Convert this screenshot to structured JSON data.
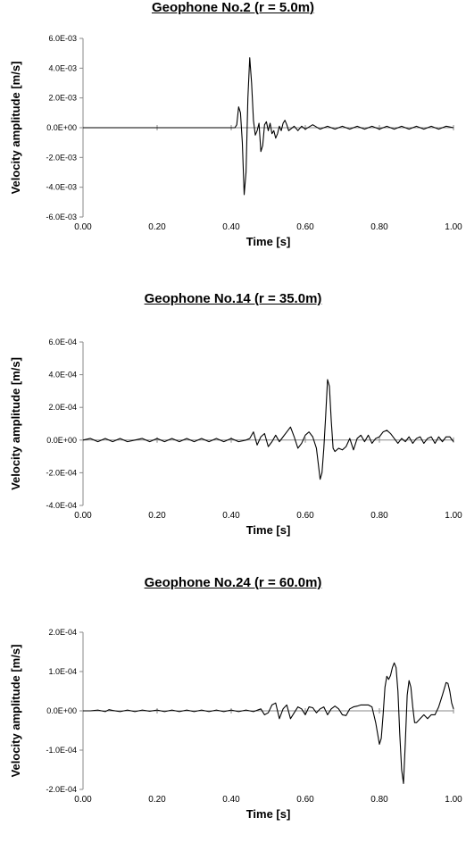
{
  "chart_data": [
    {
      "type": "line",
      "title": "Geophone No.2 (r = 5.0m)",
      "xlabel": "Time [s]",
      "ylabel": "Velocity amplitude [m/s]",
      "xlim": [
        0,
        1
      ],
      "ylim": [
        -0.006,
        0.006
      ],
      "x_ticks": [
        0,
        0.2,
        0.4,
        0.6,
        0.8,
        1.0
      ],
      "x_tick_labels": [
        "0.00",
        "0.20",
        "0.40",
        "0.60",
        "0.80",
        "1.00"
      ],
      "y_ticks": [
        -0.006,
        -0.004,
        -0.002,
        0,
        0.002,
        0.004,
        0.006
      ],
      "y_tick_labels": [
        "-6.0E-03",
        "-4.0E-03",
        "-2.0E-03",
        "0.0E+00",
        "2.0E-03",
        "4.0E-03",
        "6.0E-03"
      ],
      "grid": false,
      "series": [
        {
          "color": "#000000",
          "points": [
            [
              0,
              0
            ],
            [
              0.1,
              0
            ],
            [
              0.2,
              0
            ],
            [
              0.3,
              0
            ],
            [
              0.4,
              0
            ],
            [
              0.41,
              0
            ],
            [
              0.415,
              0.0002
            ],
            [
              0.42,
              0.0014
            ],
            [
              0.425,
              0.001
            ],
            [
              0.43,
              -0.001
            ],
            [
              0.435,
              -0.0045
            ],
            [
              0.44,
              -0.003
            ],
            [
              0.445,
              0.002
            ],
            [
              0.45,
              0.0047
            ],
            [
              0.455,
              0.003
            ],
            [
              0.46,
              0.0005
            ],
            [
              0.465,
              -0.0005
            ],
            [
              0.47,
              -0.0002
            ],
            [
              0.475,
              0.0003
            ],
            [
              0.48,
              -0.0016
            ],
            [
              0.485,
              -0.0012
            ],
            [
              0.49,
              0.0002
            ],
            [
              0.495,
              0.0004
            ],
            [
              0.5,
              -0.0002
            ],
            [
              0.505,
              0.0003
            ],
            [
              0.51,
              -0.0004
            ],
            [
              0.515,
              -0.0002
            ],
            [
              0.52,
              -0.0007
            ],
            [
              0.525,
              -0.0004
            ],
            [
              0.53,
              0.0001
            ],
            [
              0.535,
              -0.0002
            ],
            [
              0.54,
              0.0003
            ],
            [
              0.545,
              0.0005
            ],
            [
              0.55,
              0.0002
            ],
            [
              0.555,
              -0.0002
            ],
            [
              0.56,
              -0.0001
            ],
            [
              0.57,
              0.0001
            ],
            [
              0.58,
              -0.0002
            ],
            [
              0.59,
              0.0001
            ],
            [
              0.6,
              -0.0001
            ],
            [
              0.62,
              0.0002
            ],
            [
              0.64,
              -0.0001
            ],
            [
              0.66,
              0.0001
            ],
            [
              0.68,
              -0.0001
            ],
            [
              0.7,
              0.0001
            ],
            [
              0.72,
              -0.0001
            ],
            [
              0.74,
              0.0001
            ],
            [
              0.76,
              -0.0001
            ],
            [
              0.78,
              0.0001
            ],
            [
              0.8,
              -0.0001
            ],
            [
              0.82,
              0.0001
            ],
            [
              0.84,
              -0.0001
            ],
            [
              0.86,
              0.0001
            ],
            [
              0.88,
              -0.0001
            ],
            [
              0.9,
              0.0001
            ],
            [
              0.92,
              -0.0001
            ],
            [
              0.94,
              0.0001
            ],
            [
              0.96,
              -0.0001
            ],
            [
              0.98,
              0.0001
            ],
            [
              1.0,
              0
            ]
          ]
        }
      ]
    },
    {
      "type": "line",
      "title": "Geophone No.14 (r = 35.0m)",
      "xlabel": "Time [s]",
      "ylabel": "Velocity amplitude [m/s]",
      "xlim": [
        0,
        1
      ],
      "ylim": [
        -0.0004,
        0.0006
      ],
      "x_ticks": [
        0,
        0.2,
        0.4,
        0.6,
        0.8,
        1.0
      ],
      "x_tick_labels": [
        "0.00",
        "0.20",
        "0.40",
        "0.60",
        "0.80",
        "1.00"
      ],
      "y_ticks": [
        -0.0004,
        -0.0002,
        0,
        0.0002,
        0.0004,
        0.0006
      ],
      "y_tick_labels": [
        "-4.0E-04",
        "-2.0E-04",
        "0.0E+00",
        "2.0E-04",
        "4.0E-04",
        "6.0E-04"
      ],
      "grid": false,
      "series": [
        {
          "color": "#000000",
          "points": [
            [
              0,
              0
            ],
            [
              0.02,
              1e-05
            ],
            [
              0.04,
              -1e-05
            ],
            [
              0.06,
              1e-05
            ],
            [
              0.08,
              -1e-05
            ],
            [
              0.1,
              1e-05
            ],
            [
              0.12,
              -1e-05
            ],
            [
              0.14,
              0
            ],
            [
              0.16,
              1e-05
            ],
            [
              0.18,
              -1e-05
            ],
            [
              0.2,
              1e-05
            ],
            [
              0.22,
              -1e-05
            ],
            [
              0.24,
              1e-05
            ],
            [
              0.26,
              -1e-05
            ],
            [
              0.28,
              1e-05
            ],
            [
              0.3,
              -1e-05
            ],
            [
              0.32,
              1e-05
            ],
            [
              0.34,
              -1e-05
            ],
            [
              0.36,
              1e-05
            ],
            [
              0.38,
              -1e-05
            ],
            [
              0.4,
              1e-05
            ],
            [
              0.42,
              -1e-05
            ],
            [
              0.44,
              0
            ],
            [
              0.45,
              1e-05
            ],
            [
              0.46,
              5e-05
            ],
            [
              0.47,
              -3e-05
            ],
            [
              0.48,
              2e-05
            ],
            [
              0.49,
              4e-05
            ],
            [
              0.5,
              -4e-05
            ],
            [
              0.51,
              -1e-05
            ],
            [
              0.52,
              3e-05
            ],
            [
              0.53,
              -1e-05
            ],
            [
              0.54,
              2e-05
            ],
            [
              0.55,
              5e-05
            ],
            [
              0.56,
              8e-05
            ],
            [
              0.57,
              2e-05
            ],
            [
              0.58,
              -5e-05
            ],
            [
              0.59,
              -2e-05
            ],
            [
              0.6,
              3e-05
            ],
            [
              0.61,
              5e-05
            ],
            [
              0.62,
              2e-05
            ],
            [
              0.63,
              -5e-05
            ],
            [
              0.64,
              -0.00024
            ],
            [
              0.645,
              -0.0002
            ],
            [
              0.65,
              -5e-05
            ],
            [
              0.655,
              0.00015
            ],
            [
              0.66,
              0.00037
            ],
            [
              0.665,
              0.00033
            ],
            [
              0.67,
              0.00012
            ],
            [
              0.675,
              -5e-05
            ],
            [
              0.68,
              -7e-05
            ],
            [
              0.69,
              -5e-05
            ],
            [
              0.7,
              -6e-05
            ],
            [
              0.71,
              -4e-05
            ],
            [
              0.72,
              1e-05
            ],
            [
              0.73,
              -6e-05
            ],
            [
              0.74,
              1e-05
            ],
            [
              0.75,
              3e-05
            ],
            [
              0.76,
              -1e-05
            ],
            [
              0.77,
              3e-05
            ],
            [
              0.78,
              -2e-05
            ],
            [
              0.79,
              1e-05
            ],
            [
              0.8,
              2e-05
            ],
            [
              0.81,
              5e-05
            ],
            [
              0.82,
              6e-05
            ],
            [
              0.83,
              4e-05
            ],
            [
              0.84,
              1e-05
            ],
            [
              0.85,
              -2e-05
            ],
            [
              0.86,
              1e-05
            ],
            [
              0.87,
              -1e-05
            ],
            [
              0.88,
              2e-05
            ],
            [
              0.89,
              -2e-05
            ],
            [
              0.9,
              1e-05
            ],
            [
              0.91,
              2e-05
            ],
            [
              0.92,
              -2e-05
            ],
            [
              0.93,
              1e-05
            ],
            [
              0.94,
              2e-05
            ],
            [
              0.95,
              -2e-05
            ],
            [
              0.96,
              2e-05
            ],
            [
              0.97,
              -1e-05
            ],
            [
              0.98,
              2e-05
            ],
            [
              0.99,
              2e-05
            ],
            [
              1.0,
              -1e-05
            ]
          ]
        }
      ]
    },
    {
      "type": "line",
      "title": "Geophone No.24 (r = 60.0m)",
      "xlabel": "Time [s]",
      "ylabel": "Velocity amplitude [m/s]",
      "xlim": [
        0,
        1
      ],
      "ylim": [
        -0.0002,
        0.0002
      ],
      "x_ticks": [
        0,
        0.2,
        0.4,
        0.6,
        0.8,
        1.0
      ],
      "x_tick_labels": [
        "0.00",
        "0.20",
        "0.40",
        "0.60",
        "0.80",
        "1.00"
      ],
      "y_ticks": [
        -0.0002,
        -0.0001,
        0,
        0.0001,
        0.0002
      ],
      "y_tick_labels": [
        "-2.0E-04",
        "-1.0E-04",
        "0.0E+00",
        "1.0E-04",
        "2.0E-04"
      ],
      "grid": false,
      "series": [
        {
          "color": "#000000",
          "points": [
            [
              0,
              0
            ],
            [
              0.02,
              0
            ],
            [
              0.04,
              2e-06
            ],
            [
              0.06,
              -2e-06
            ],
            [
              0.07,
              3e-06
            ],
            [
              0.08,
              1e-06
            ],
            [
              0.1,
              -2e-06
            ],
            [
              0.12,
              2e-06
            ],
            [
              0.14,
              -2e-06
            ],
            [
              0.16,
              2e-06
            ],
            [
              0.18,
              -1e-06
            ],
            [
              0.2,
              2e-06
            ],
            [
              0.22,
              -2e-06
            ],
            [
              0.24,
              2e-06
            ],
            [
              0.26,
              -2e-06
            ],
            [
              0.28,
              2e-06
            ],
            [
              0.3,
              -2e-06
            ],
            [
              0.32,
              2e-06
            ],
            [
              0.34,
              -2e-06
            ],
            [
              0.36,
              2e-06
            ],
            [
              0.38,
              -2e-06
            ],
            [
              0.4,
              2e-06
            ],
            [
              0.42,
              -2e-06
            ],
            [
              0.44,
              2e-06
            ],
            [
              0.46,
              -2e-06
            ],
            [
              0.48,
              5e-06
            ],
            [
              0.49,
              -1e-05
            ],
            [
              0.5,
              -5e-06
            ],
            [
              0.51,
              1.5e-05
            ],
            [
              0.52,
              2e-05
            ],
            [
              0.53,
              -2e-05
            ],
            [
              0.54,
              5e-06
            ],
            [
              0.55,
              1.5e-05
            ],
            [
              0.56,
              -2e-05
            ],
            [
              0.57,
              -5e-06
            ],
            [
              0.58,
              1e-05
            ],
            [
              0.59,
              5e-06
            ],
            [
              0.6,
              -1e-05
            ],
            [
              0.61,
              1e-05
            ],
            [
              0.62,
              8e-06
            ],
            [
              0.63,
              -5e-06
            ],
            [
              0.64,
              5e-06
            ],
            [
              0.65,
              1e-05
            ],
            [
              0.66,
              -1e-05
            ],
            [
              0.67,
              5e-06
            ],
            [
              0.68,
              1.2e-05
            ],
            [
              0.69,
              5e-06
            ],
            [
              0.7,
              -1e-05
            ],
            [
              0.71,
              -1.2e-05
            ],
            [
              0.72,
              5e-06
            ],
            [
              0.73,
              1e-05
            ],
            [
              0.74,
              1.2e-05
            ],
            [
              0.75,
              1.5e-05
            ],
            [
              0.76,
              1.5e-05
            ],
            [
              0.77,
              1.5e-05
            ],
            [
              0.78,
              1e-05
            ],
            [
              0.79,
              -3e-05
            ],
            [
              0.8,
              -8.5e-05
            ],
            [
              0.805,
              -7e-05
            ],
            [
              0.81,
              -1e-05
            ],
            [
              0.815,
              6e-05
            ],
            [
              0.82,
              8.8e-05
            ],
            [
              0.825,
              8e-05
            ],
            [
              0.83,
              9e-05
            ],
            [
              0.835,
              0.00011
            ],
            [
              0.84,
              0.000122
            ],
            [
              0.845,
              0.00011
            ],
            [
              0.85,
              5e-05
            ],
            [
              0.855,
              -6e-05
            ],
            [
              0.86,
              -0.00015
            ],
            [
              0.865,
              -0.000185
            ],
            [
              0.87,
              -8e-05
            ],
            [
              0.875,
              4e-05
            ],
            [
              0.88,
              7.7e-05
            ],
            [
              0.885,
              6e-05
            ],
            [
              0.89,
              1e-05
            ],
            [
              0.895,
              -3e-05
            ],
            [
              0.9,
              -3e-05
            ],
            [
              0.91,
              -2e-05
            ],
            [
              0.92,
              -1e-05
            ],
            [
              0.93,
              -2e-05
            ],
            [
              0.94,
              -1e-05
            ],
            [
              0.95,
              -1e-05
            ],
            [
              0.96,
              1e-05
            ],
            [
              0.97,
              4e-05
            ],
            [
              0.98,
              7.2e-05
            ],
            [
              0.985,
              7e-05
            ],
            [
              0.99,
              5e-05
            ],
            [
              0.995,
              2e-05
            ],
            [
              1.0,
              5e-06
            ]
          ]
        }
      ]
    }
  ]
}
